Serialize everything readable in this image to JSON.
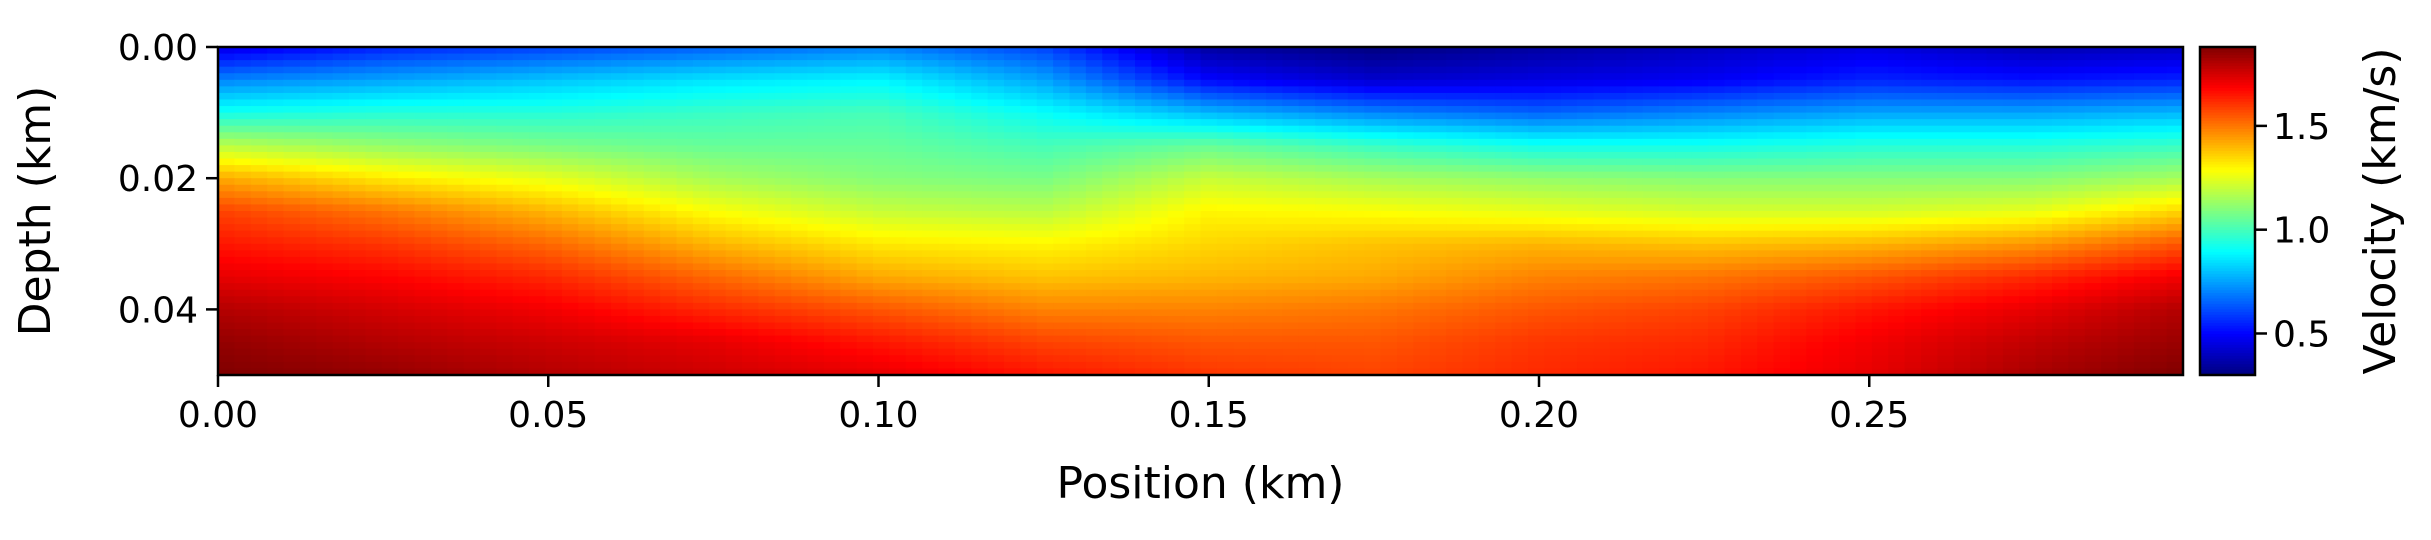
{
  "chart_data": {
    "type": "heatmap",
    "colormap": "jet",
    "xlabel": "Position (km)",
    "ylabel": "Depth (km)",
    "xlim": [
      0.0,
      0.2975
    ],
    "ylim": [
      0.05,
      0.0
    ],
    "x_ticks": [
      "0.00",
      "0.05",
      "0.10",
      "0.15",
      "0.20",
      "0.25"
    ],
    "y_ticks": [
      "0.00",
      "0.02",
      "0.04"
    ],
    "colorbar": {
      "label": "Velocity (km/s)",
      "vmin": 0.3,
      "vmax": 1.88,
      "ticks": [
        "0.5",
        "1.0",
        "1.5"
      ]
    },
    "grid": false,
    "z_columns_x": [
      0.0,
      0.025,
      0.05,
      0.075,
      0.1,
      0.125,
      0.15,
      0.175,
      0.2,
      0.225,
      0.25,
      0.275,
      0.2975
    ],
    "z_rows_depth": [
      0.0,
      0.005,
      0.01,
      0.015,
      0.02,
      0.025,
      0.03,
      0.035,
      0.04,
      0.045,
      0.05
    ],
    "z_values": [
      [
        0.45,
        0.55,
        0.6,
        0.65,
        0.7,
        0.6,
        0.35,
        0.3,
        0.35,
        0.4,
        0.45,
        0.38,
        0.4
      ],
      [
        0.7,
        0.75,
        0.8,
        0.85,
        0.88,
        0.75,
        0.5,
        0.42,
        0.45,
        0.48,
        0.55,
        0.52,
        0.55
      ],
      [
        0.92,
        0.95,
        0.95,
        0.98,
        1.0,
        0.9,
        0.78,
        0.7,
        0.65,
        0.7,
        0.75,
        0.75,
        0.78
      ],
      [
        1.18,
        1.12,
        1.08,
        1.05,
        1.05,
        1.0,
        1.05,
        0.98,
        0.92,
        0.92,
        0.95,
        0.95,
        0.98
      ],
      [
        1.42,
        1.32,
        1.25,
        1.15,
        1.1,
        1.08,
        1.2,
        1.15,
        1.12,
        1.1,
        1.1,
        1.1,
        1.15
      ],
      [
        1.58,
        1.5,
        1.4,
        1.28,
        1.2,
        1.18,
        1.3,
        1.28,
        1.25,
        1.22,
        1.22,
        1.25,
        1.35
      ],
      [
        1.65,
        1.6,
        1.52,
        1.4,
        1.32,
        1.3,
        1.35,
        1.38,
        1.4,
        1.38,
        1.4,
        1.45,
        1.55
      ],
      [
        1.72,
        1.68,
        1.62,
        1.52,
        1.42,
        1.38,
        1.4,
        1.42,
        1.48,
        1.5,
        1.55,
        1.62,
        1.7
      ],
      [
        1.8,
        1.75,
        1.7,
        1.62,
        1.55,
        1.48,
        1.48,
        1.5,
        1.55,
        1.58,
        1.65,
        1.72,
        1.8
      ],
      [
        1.85,
        1.8,
        1.76,
        1.72,
        1.65,
        1.58,
        1.55,
        1.55,
        1.6,
        1.62,
        1.7,
        1.78,
        1.84
      ],
      [
        1.88,
        1.85,
        1.8,
        1.76,
        1.72,
        1.65,
        1.6,
        1.58,
        1.62,
        1.65,
        1.72,
        1.82,
        1.88
      ]
    ]
  }
}
